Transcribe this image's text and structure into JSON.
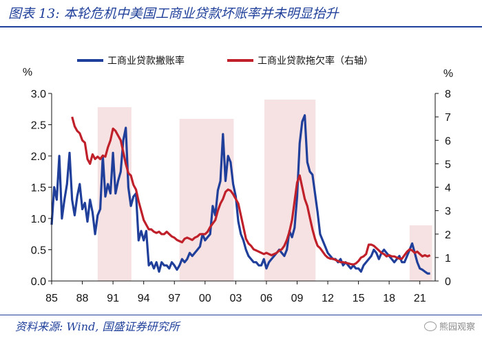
{
  "header": {
    "title": "图表 13:  本轮危机中美国工商业贷款坏账率并未明显抬升"
  },
  "footer": {
    "source": "资料来源: Wind, 国盛证券研究所",
    "watermark": "熊园观察"
  },
  "chart_data": {
    "type": "line",
    "title": "图表 13:  本轮危机中美国工商业贷款坏账率并未明显抬升",
    "xlabel": "",
    "ylabel": "%",
    "y2label": "%",
    "ylim": [
      0,
      3.0
    ],
    "y2lim": [
      0,
      8
    ],
    "xlim": [
      1985,
      2022.5
    ],
    "x_ticks": [
      1985,
      1988,
      1991,
      1994,
      1997,
      2000,
      2003,
      2006,
      2009,
      2012,
      2015,
      2018,
      2021
    ],
    "x_tick_labels": [
      "85",
      "88",
      "91",
      "94",
      "97",
      "00",
      "03",
      "06",
      "09",
      "12",
      "15",
      "18",
      "21"
    ],
    "y_ticks": [
      "0.0",
      "0.5",
      "1.0",
      "1.5",
      "2.0",
      "2.5",
      "3.0"
    ],
    "y2_ticks": [
      "0",
      "1",
      "2",
      "3",
      "4",
      "5",
      "6",
      "7",
      "8"
    ],
    "grid": false,
    "legend_position": "top",
    "recession_shading": {
      "color": "#f6e2e2",
      "periods": [
        [
          1989.5,
          1992.8
        ],
        [
          1997.5,
          2002.8
        ],
        [
          2005.8,
          2010.8
        ],
        [
          2020.0,
          2022.2
        ]
      ]
    },
    "series": [
      {
        "name": "工商业贷款撇账率",
        "axis": "left",
        "color": "#1f3f9a",
        "x": [
          1985.0,
          1985.25,
          1985.5,
          1985.75,
          1986.0,
          1986.25,
          1986.5,
          1986.75,
          1987.0,
          1987.25,
          1987.5,
          1987.75,
          1988.0,
          1988.25,
          1988.5,
          1988.75,
          1989.0,
          1989.25,
          1989.5,
          1989.75,
          1990.0,
          1990.25,
          1990.5,
          1990.75,
          1991.0,
          1991.25,
          1991.5,
          1991.75,
          1992.0,
          1992.25,
          1992.5,
          1992.75,
          1993.0,
          1993.25,
          1993.5,
          1993.75,
          1994.0,
          1994.25,
          1994.5,
          1994.75,
          1995.0,
          1995.25,
          1995.5,
          1995.75,
          1996.0,
          1996.25,
          1996.5,
          1996.75,
          1997.0,
          1997.25,
          1997.5,
          1997.75,
          1998.0,
          1998.25,
          1998.5,
          1998.75,
          1999.0,
          1999.25,
          1999.5,
          1999.75,
          2000.0,
          2000.25,
          2000.5,
          2000.75,
          2001.0,
          2001.25,
          2001.5,
          2001.75,
          2002.0,
          2002.25,
          2002.5,
          2002.75,
          2003.0,
          2003.25,
          2003.5,
          2003.75,
          2004.0,
          2004.25,
          2004.5,
          2004.75,
          2005.0,
          2005.25,
          2005.5,
          2005.75,
          2006.0,
          2006.25,
          2006.5,
          2006.75,
          2007.0,
          2007.25,
          2007.5,
          2007.75,
          2008.0,
          2008.25,
          2008.5,
          2008.75,
          2009.0,
          2009.25,
          2009.5,
          2009.75,
          2010.0,
          2010.25,
          2010.5,
          2010.75,
          2011.0,
          2011.25,
          2011.5,
          2011.75,
          2012.0,
          2012.25,
          2012.5,
          2012.75,
          2013.0,
          2013.25,
          2013.5,
          2013.75,
          2014.0,
          2014.25,
          2014.5,
          2014.75,
          2015.0,
          2015.25,
          2015.5,
          2015.75,
          2016.0,
          2016.25,
          2016.5,
          2016.75,
          2017.0,
          2017.25,
          2017.5,
          2017.75,
          2018.0,
          2018.25,
          2018.5,
          2018.75,
          2019.0,
          2019.25,
          2019.5,
          2019.75,
          2020.0,
          2020.25,
          2020.5,
          2020.75,
          2021.0,
          2021.25,
          2021.5,
          2021.75,
          2022.0
        ],
        "values": [
          0.9,
          1.5,
          1.3,
          2.0,
          1.0,
          1.3,
          1.55,
          2.05,
          1.3,
          1.05,
          1.35,
          1.55,
          1.15,
          1.25,
          0.95,
          1.3,
          1.1,
          0.75,
          1.05,
          1.15,
          2.0,
          1.35,
          1.55,
          1.4,
          2.05,
          1.4,
          1.6,
          1.75,
          2.25,
          2.45,
          1.5,
          1.2,
          1.35,
          1.4,
          0.65,
          0.8,
          0.65,
          0.8,
          0.25,
          0.3,
          0.2,
          0.3,
          0.15,
          0.3,
          0.25,
          0.25,
          0.2,
          0.3,
          0.25,
          0.18,
          0.25,
          0.35,
          0.3,
          0.35,
          0.45,
          0.4,
          0.45,
          0.5,
          0.55,
          0.75,
          0.65,
          0.7,
          0.75,
          1.2,
          1.05,
          1.45,
          1.6,
          2.35,
          1.6,
          2.0,
          1.9,
          1.55,
          1.35,
          0.95,
          0.75,
          0.65,
          0.5,
          0.4,
          0.35,
          0.3,
          0.3,
          0.25,
          0.25,
          0.35,
          0.2,
          0.3,
          0.35,
          0.4,
          0.45,
          0.5,
          0.45,
          0.4,
          0.5,
          0.8,
          0.7,
          0.85,
          1.35,
          2.2,
          2.55,
          2.65,
          1.9,
          1.75,
          1.7,
          1.4,
          1.1,
          0.75,
          0.65,
          0.55,
          0.45,
          0.4,
          0.35,
          0.35,
          0.3,
          0.35,
          0.25,
          0.3,
          0.25,
          0.2,
          0.25,
          0.2,
          0.2,
          0.15,
          0.25,
          0.3,
          0.35,
          0.4,
          0.5,
          0.45,
          0.35,
          0.45,
          0.5,
          0.45,
          0.4,
          0.35,
          0.3,
          0.35,
          0.4,
          0.3,
          0.3,
          0.4,
          0.5,
          0.6,
          0.45,
          0.3,
          0.2,
          0.18,
          0.15,
          0.12,
          0.12
        ]
      },
      {
        "name": "工商业贷款拖欠率（右轴）",
        "axis": "right",
        "color": "#c0202a",
        "x": [
          1987.0,
          1987.25,
          1987.5,
          1987.75,
          1988.0,
          1988.25,
          1988.5,
          1988.75,
          1989.0,
          1989.25,
          1989.5,
          1989.75,
          1990.0,
          1990.25,
          1990.5,
          1990.75,
          1991.0,
          1991.25,
          1991.5,
          1991.75,
          1992.0,
          1992.25,
          1992.5,
          1992.75,
          1993.0,
          1993.25,
          1993.5,
          1993.75,
          1994.0,
          1994.25,
          1994.5,
          1994.75,
          1995.0,
          1995.25,
          1995.5,
          1995.75,
          1996.0,
          1996.25,
          1996.5,
          1996.75,
          1997.0,
          1997.25,
          1997.5,
          1997.75,
          1998.0,
          1998.25,
          1998.5,
          1998.75,
          1999.0,
          1999.25,
          1999.5,
          1999.75,
          2000.0,
          2000.25,
          2000.5,
          2000.75,
          2001.0,
          2001.25,
          2001.5,
          2001.75,
          2002.0,
          2002.25,
          2002.5,
          2002.75,
          2003.0,
          2003.25,
          2003.5,
          2003.75,
          2004.0,
          2004.25,
          2004.5,
          2004.75,
          2005.0,
          2005.25,
          2005.5,
          2005.75,
          2006.0,
          2006.25,
          2006.5,
          2006.75,
          2007.0,
          2007.25,
          2007.5,
          2007.75,
          2008.0,
          2008.25,
          2008.5,
          2008.75,
          2009.0,
          2009.25,
          2009.5,
          2009.75,
          2010.0,
          2010.25,
          2010.5,
          2010.75,
          2011.0,
          2011.25,
          2011.5,
          2011.75,
          2012.0,
          2012.25,
          2012.5,
          2012.75,
          2013.0,
          2013.25,
          2013.5,
          2013.75,
          2014.0,
          2014.25,
          2014.5,
          2014.75,
          2015.0,
          2015.25,
          2015.5,
          2015.75,
          2016.0,
          2016.25,
          2016.5,
          2016.75,
          2017.0,
          2017.25,
          2017.5,
          2017.75,
          2018.0,
          2018.25,
          2018.5,
          2018.75,
          2019.0,
          2019.25,
          2019.5,
          2019.75,
          2020.0,
          2020.25,
          2020.5,
          2020.75,
          2021.0,
          2021.25,
          2021.5,
          2021.75,
          2022.0
        ],
        "values": [
          7.0,
          6.6,
          6.4,
          6.3,
          6.0,
          5.9,
          5.2,
          5.0,
          5.4,
          5.2,
          5.3,
          5.2,
          5.35,
          5.3,
          5.7,
          6.0,
          6.5,
          6.4,
          6.2,
          6.0,
          5.5,
          5.0,
          4.6,
          4.5,
          4.1,
          3.9,
          3.4,
          3.0,
          2.6,
          2.4,
          2.2,
          2.2,
          2.1,
          2.05,
          2.1,
          2.0,
          2.0,
          2.1,
          2.0,
          1.9,
          1.85,
          1.75,
          1.7,
          1.65,
          1.8,
          1.85,
          1.8,
          1.75,
          1.85,
          1.9,
          2.0,
          2.0,
          2.0,
          2.1,
          2.3,
          2.45,
          2.6,
          3.0,
          3.3,
          3.5,
          3.8,
          3.9,
          3.85,
          3.7,
          3.5,
          3.3,
          2.8,
          2.3,
          1.8,
          1.6,
          1.5,
          1.35,
          1.3,
          1.25,
          1.2,
          1.15,
          1.2,
          1.15,
          1.1,
          1.15,
          1.2,
          1.3,
          1.35,
          1.5,
          1.75,
          2.1,
          2.6,
          3.4,
          4.2,
          4.5,
          4.0,
          3.5,
          3.2,
          2.7,
          2.2,
          1.8,
          1.5,
          1.4,
          1.25,
          1.1,
          1.0,
          0.95,
          0.95,
          0.9,
          0.85,
          0.8,
          0.8,
          0.78,
          0.75,
          0.72,
          0.7,
          0.75,
          0.85,
          1.0,
          1.05,
          1.15,
          1.55,
          1.55,
          1.5,
          1.4,
          1.3,
          1.2,
          1.15,
          1.05,
          1.1,
          1.05,
          1.05,
          1.0,
          0.95,
          0.95,
          1.1,
          1.25,
          1.35,
          1.3,
          1.2,
          1.25,
          1.15,
          1.05,
          1.1,
          1.05,
          1.1
        ]
      }
    ]
  }
}
